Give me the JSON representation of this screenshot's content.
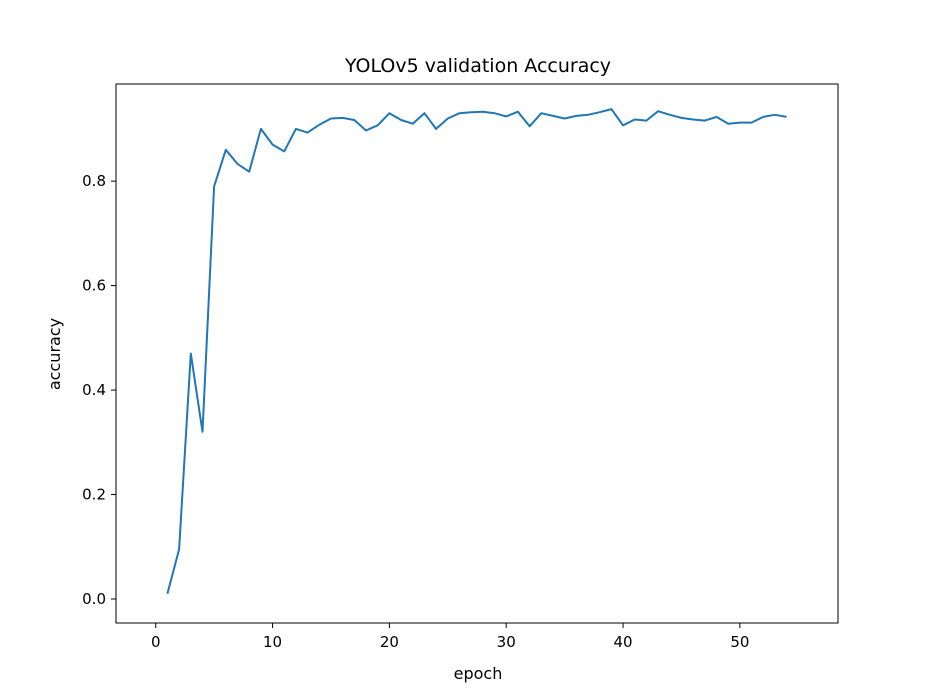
{
  "chart_data": {
    "type": "line",
    "title": "YOLOv5 validation Accuracy",
    "xlabel": "epoch",
    "ylabel": "accuracy",
    "xlim": [
      -3.4,
      58.4
    ],
    "ylim": [
      -0.046,
      0.986
    ],
    "xticks": [
      0,
      10,
      20,
      30,
      40,
      50
    ],
    "yticks": [
      0.0,
      0.2,
      0.4,
      0.6,
      0.8
    ],
    "ytick_labels": [
      "0.0",
      "0.2",
      "0.4",
      "0.6",
      "0.8"
    ],
    "grid": false,
    "legend": "none",
    "series": [
      {
        "color": "#1f77b4",
        "x": [
          1,
          2,
          3,
          4,
          5,
          6,
          7,
          8,
          9,
          10,
          11,
          12,
          13,
          14,
          15,
          16,
          17,
          18,
          19,
          20,
          21,
          22,
          23,
          24,
          25,
          26,
          27,
          28,
          29,
          30,
          31,
          32,
          33,
          34,
          35,
          36,
          37,
          38,
          39,
          40,
          41,
          42,
          43,
          44,
          45,
          46,
          47,
          48,
          49,
          50,
          51,
          52,
          53,
          54
        ],
        "y": [
          0.01,
          0.095,
          0.47,
          0.32,
          0.79,
          0.86,
          0.833,
          0.818,
          0.9,
          0.87,
          0.857,
          0.9,
          0.893,
          0.908,
          0.92,
          0.921,
          0.917,
          0.897,
          0.907,
          0.93,
          0.917,
          0.91,
          0.93,
          0.9,
          0.92,
          0.93,
          0.932,
          0.933,
          0.93,
          0.924,
          0.933,
          0.905,
          0.93,
          0.925,
          0.92,
          0.925,
          0.927,
          0.932,
          0.938,
          0.907,
          0.918,
          0.916,
          0.934,
          0.927,
          0.921,
          0.918,
          0.916,
          0.923,
          0.91,
          0.912,
          0.912,
          0.923,
          0.927,
          0.923
        ]
      }
    ]
  }
}
